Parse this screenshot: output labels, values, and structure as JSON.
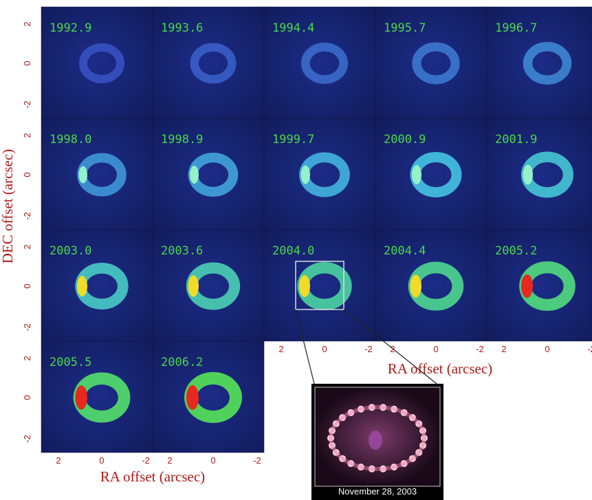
{
  "panels": [
    {
      "label": "1992.9"
    },
    {
      "label": "1993.6"
    },
    {
      "label": "1994.4"
    },
    {
      "label": "1995.7"
    },
    {
      "label": "1996.7"
    },
    {
      "label": "1998.0"
    },
    {
      "label": "1998.9"
    },
    {
      "label": "1999.7"
    },
    {
      "label": "2000.9"
    },
    {
      "label": "2001.9"
    },
    {
      "label": "2003.0"
    },
    {
      "label": "2003.6"
    },
    {
      "label": "2004.0"
    },
    {
      "label": "2004.4"
    },
    {
      "label": "2005.2"
    },
    {
      "label": "2005.5"
    },
    {
      "label": "2006.2"
    }
  ],
  "y_axis": {
    "title": "DEC offset (arcsec)",
    "ticks": [
      "2",
      "0",
      "-2"
    ]
  },
  "x_axis": {
    "title": "RA offset (arcsec)",
    "ticks": [
      "2",
      "0",
      "-2"
    ]
  },
  "inset": {
    "caption": "November 28, 2003"
  }
}
